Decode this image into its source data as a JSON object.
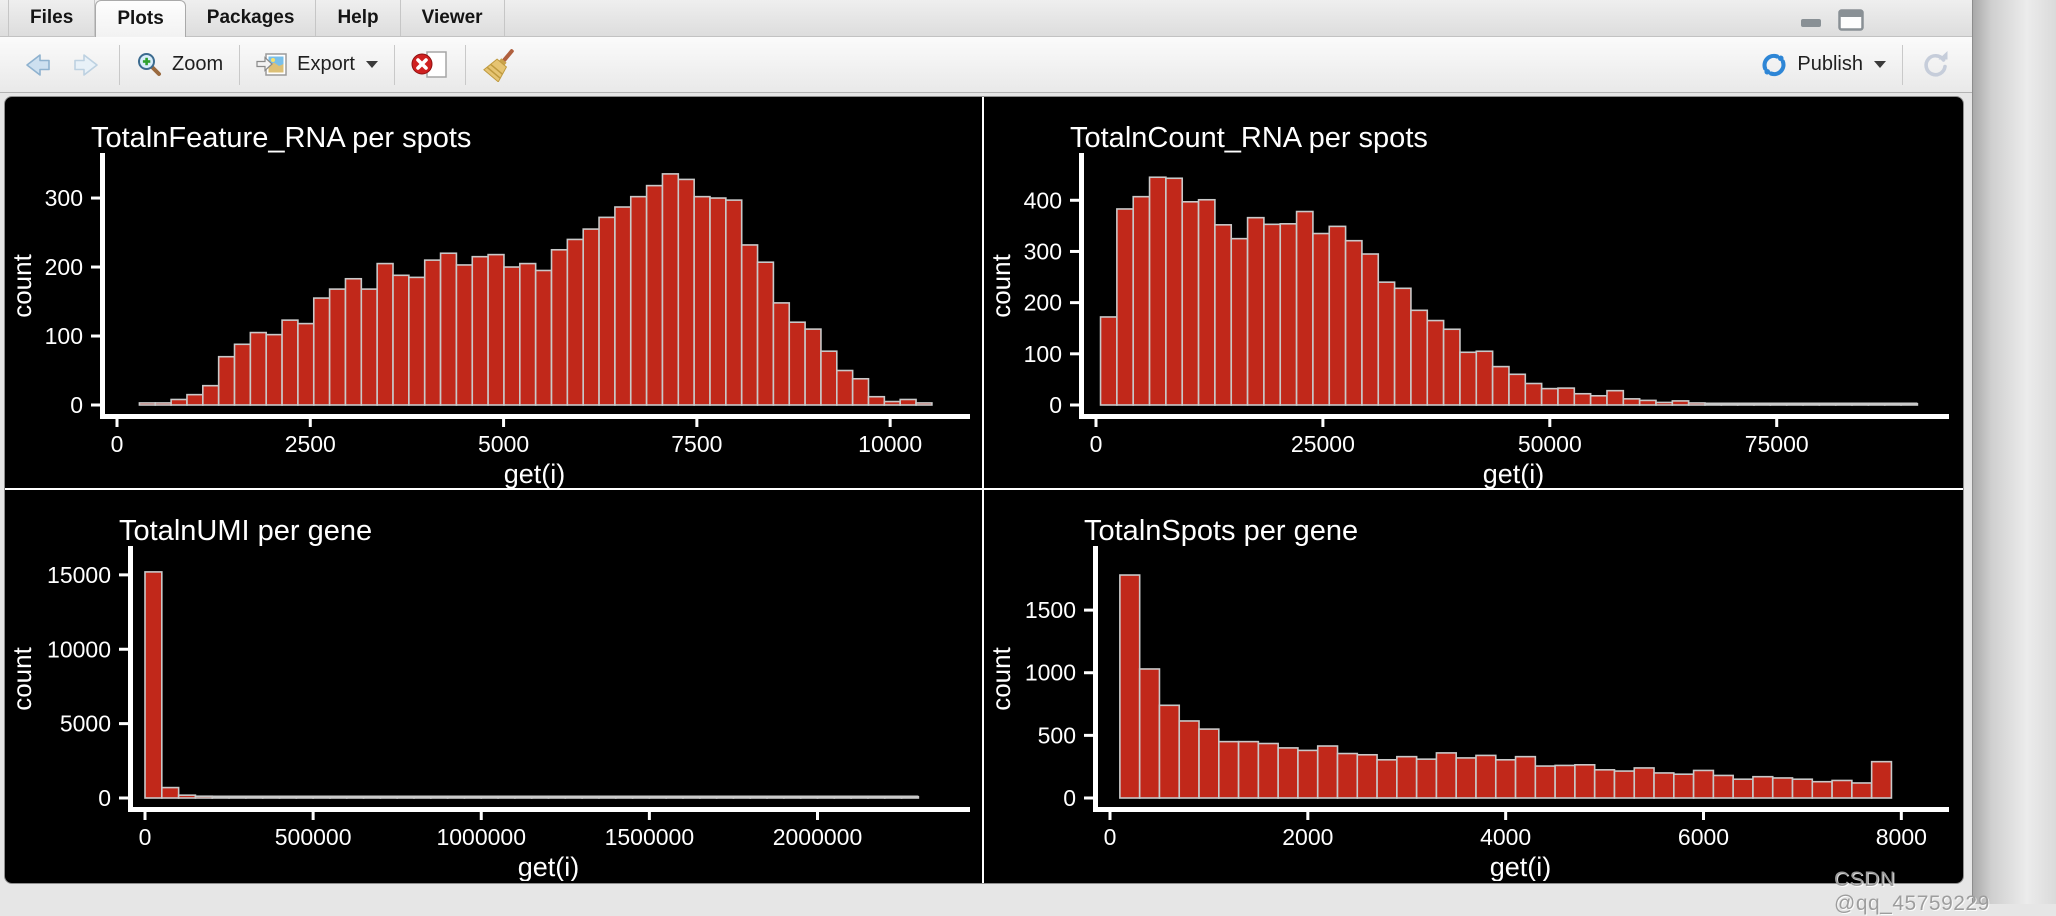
{
  "tabs": {
    "items": [
      {
        "label": "Files",
        "active": false
      },
      {
        "label": "Plots",
        "active": true
      },
      {
        "label": "Packages",
        "active": false
      },
      {
        "label": "Help",
        "active": false
      },
      {
        "label": "Viewer",
        "active": false
      }
    ]
  },
  "toolbar": {
    "back_icon": "back-arrow-icon",
    "forward_icon": "forward-arrow-icon",
    "zoom": {
      "label": "Zoom",
      "icon": "magnifier-plus-icon"
    },
    "export": {
      "label": "Export",
      "icon": "export-image-icon",
      "caret": "chevron-down-icon"
    },
    "remove_plot_icon": "remove-plot-icon",
    "clear_plots_icon": "broom-icon",
    "publish": {
      "label": "Publish",
      "icon": "publish-icon",
      "caret": "chevron-down-icon"
    },
    "refresh_icon": "refresh-icon"
  },
  "window_controls": {
    "minimize_icon": "minimize-icon",
    "maximize_icon": "maximize-icon"
  },
  "watermark": {
    "text": "CSDN @qq_45759229"
  },
  "colors": {
    "bar_fill": "#C1281A",
    "bar_stroke": "#C9C9C9",
    "plot_bg": "#000000",
    "plot_text": "#FFFFFF",
    "publish_blue": "#2E86D6",
    "delete_red": "#CF2020"
  },
  "chart_data": [
    {
      "type": "bar",
      "kind": "histogram",
      "title": "TotalnFeature_RNA  per spots",
      "xlabel": "get(i)",
      "ylabel": "count",
      "grid": false,
      "legend": "none",
      "x_ticks": [
        0,
        2500,
        5000,
        7500,
        10000
      ],
      "y_ticks": [
        0,
        100,
        200,
        300
      ],
      "x_max": 10800,
      "y_max": 345,
      "bin_start": 290,
      "bin_width": 205,
      "values": [
        3,
        3,
        8,
        15,
        28,
        70,
        88,
        105,
        102,
        123,
        118,
        155,
        168,
        183,
        168,
        205,
        188,
        185,
        210,
        220,
        203,
        215,
        218,
        200,
        205,
        195,
        225,
        240,
        255,
        272,
        287,
        302,
        318,
        335,
        327,
        302,
        300,
        297,
        232,
        207,
        148,
        120,
        110,
        78,
        50,
        38,
        12,
        5,
        8,
        3
      ]
    },
    {
      "type": "bar",
      "kind": "histogram",
      "title": "TotalnCount_RNA  per spots",
      "xlabel": "get(i)",
      "ylabel": "count",
      "grid": false,
      "legend": "none",
      "x_ticks": [
        0,
        25000,
        50000,
        75000
      ],
      "y_ticks": [
        0,
        100,
        200,
        300,
        400
      ],
      "x_max": 92000,
      "y_max": 465,
      "bin_start": 500,
      "bin_width": 1800,
      "values": [
        172,
        383,
        407,
        445,
        443,
        397,
        401,
        352,
        325,
        366,
        353,
        354,
        378,
        335,
        349,
        321,
        295,
        240,
        228,
        185,
        165,
        148,
        103,
        105,
        75,
        60,
        42,
        32,
        33,
        22,
        18,
        28,
        12,
        9,
        5,
        8,
        4,
        3,
        3,
        2,
        2,
        3,
        2,
        2,
        1,
        2,
        1,
        1,
        2,
        1
      ]
    },
    {
      "type": "bar",
      "kind": "histogram",
      "title": "TotalnUMI  per gene",
      "xlabel": "get(i)",
      "ylabel": "count",
      "grid": false,
      "legend": "none",
      "x_ticks": [
        0,
        500000,
        1000000,
        1500000,
        2000000
      ],
      "y_ticks": [
        0,
        5000,
        10000,
        15000
      ],
      "x_max": 2400000,
      "y_max": 16000,
      "bin_start": 0,
      "bin_width": 50000,
      "values": [
        15200,
        700,
        190,
        120,
        95,
        80,
        70,
        65,
        60,
        55,
        52,
        50,
        48,
        46,
        45,
        44,
        43,
        42,
        41,
        40,
        40,
        38,
        38,
        36,
        36,
        35,
        35,
        34,
        34,
        33,
        33,
        32,
        32,
        31,
        31,
        30,
        30,
        30,
        29,
        29,
        28,
        28,
        27,
        27,
        26,
        25
      ]
    },
    {
      "type": "bar",
      "kind": "histogram",
      "title": "TotalnSpots  per gene",
      "xlabel": "get(i)",
      "ylabel": "count",
      "grid": false,
      "legend": "none",
      "x_ticks": [
        0,
        2000,
        4000,
        6000,
        8000
      ],
      "y_ticks": [
        0,
        500,
        1000,
        1500
      ],
      "x_max": 8300,
      "y_max": 1900,
      "bin_start": 100,
      "bin_width": 200,
      "values": [
        1780,
        1030,
        740,
        615,
        550,
        450,
        450,
        435,
        400,
        380,
        415,
        355,
        345,
        305,
        330,
        310,
        360,
        320,
        340,
        305,
        330,
        255,
        260,
        265,
        225,
        215,
        240,
        200,
        190,
        220,
        180,
        150,
        170,
        160,
        150,
        130,
        140,
        120,
        290
      ]
    }
  ]
}
